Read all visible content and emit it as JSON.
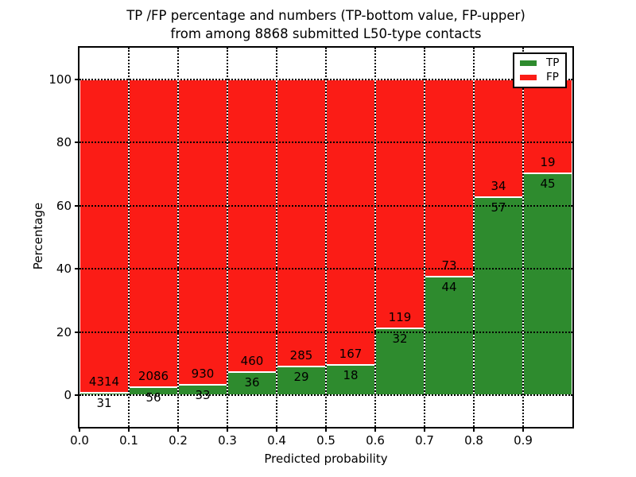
{
  "title": {
    "line1": "TP /FP percentage and numbers (TP-bottom value, FP-upper)",
    "line2": "from among 8868 submitted L50-type contacts"
  },
  "axes": {
    "xlabel": "Predicted probability",
    "ylabel": "Percentage",
    "x_tick_labels": [
      "0.0",
      "0.1",
      "0.2",
      "0.3",
      "0.4",
      "0.5",
      "0.6",
      "0.7",
      "0.8",
      "0.9"
    ],
    "y_tick_values": [
      0,
      20,
      40,
      60,
      80,
      100
    ],
    "xlim": [
      0.0,
      1.0
    ],
    "ylim": [
      -10,
      110
    ],
    "grid_style": "dotted"
  },
  "legend": {
    "position": "upper right",
    "items": [
      {
        "label": "TP",
        "color": "#2e8b2e"
      },
      {
        "label": "FP",
        "color": "#fb1c16"
      }
    ]
  },
  "chart_data": {
    "type": "bar",
    "stacked": true,
    "normalization": "each bin stacked to 100 percent",
    "total_contacts": 8868,
    "bin_width": 0.1,
    "bin_starts": [
      0.0,
      0.1,
      0.2,
      0.3,
      0.4,
      0.5,
      0.6,
      0.7,
      0.8,
      0.9
    ],
    "series": [
      {
        "name": "TP",
        "color": "#2e8b2e",
        "values": [
          31,
          56,
          33,
          36,
          29,
          18,
          32,
          44,
          57,
          45
        ]
      },
      {
        "name": "FP",
        "color": "#fb1c16",
        "values": [
          4314,
          2086,
          930,
          460,
          285,
          167,
          119,
          73,
          34,
          19
        ]
      }
    ],
    "tp_percent_by_bin": [
      0.71,
      2.61,
      3.43,
      7.26,
      9.24,
      9.73,
      21.19,
      37.61,
      62.64,
      70.31
    ],
    "title": "TP /FP percentage and numbers (TP-bottom value, FP-upper) from among 8868 submitted L50-type contacts",
    "xlabel": "Predicted probability",
    "ylabel": "Percentage"
  }
}
